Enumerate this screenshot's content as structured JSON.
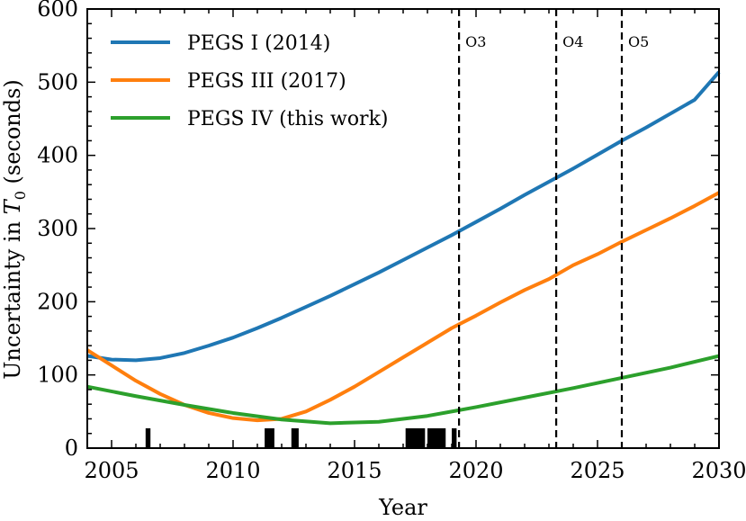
{
  "chart_data": {
    "type": "line",
    "title": "",
    "xlabel": "Year",
    "ylabel_parts": {
      "prefix": "Uncertainty in ",
      "symbol": "T",
      "subscript": "0",
      "suffix": " (seconds)"
    },
    "xlim": [
      2004,
      2030
    ],
    "ylim": [
      0,
      600
    ],
    "xticks": [
      2005,
      2010,
      2015,
      2020,
      2025,
      2030
    ],
    "yticks": [
      0,
      100,
      200,
      300,
      400,
      500,
      600
    ],
    "legend_position": "top-left",
    "series": [
      {
        "name": "PEGS I (2014)",
        "color": "#1f77b4",
        "x": [
          2004,
          2005,
          2006,
          2007,
          2008,
          2009,
          2010,
          2011,
          2012,
          2013,
          2014,
          2015,
          2016,
          2017,
          2018,
          2019,
          2020,
          2021,
          2022,
          2023,
          2024,
          2025,
          2026,
          2027,
          2028,
          2029,
          2030
        ],
        "y": [
          126,
          121,
          120,
          123,
          130,
          140,
          151,
          164,
          178,
          193,
          208,
          224,
          240,
          257,
          274,
          291,
          309,
          327,
          346,
          364,
          382,
          401,
          420,
          438,
          457,
          476,
          514
        ]
      },
      {
        "name": "PEGS III (2017)",
        "color": "#ff7f0e",
        "x": [
          2004,
          2005,
          2006,
          2007,
          2008,
          2009,
          2010,
          2011,
          2012,
          2013,
          2014,
          2015,
          2016,
          2017,
          2018,
          2019,
          2020,
          2021,
          2022,
          2023,
          2024,
          2025,
          2026,
          2027,
          2028,
          2029,
          2030
        ],
        "y": [
          134,
          113,
          92,
          74,
          59,
          48,
          41,
          38,
          40,
          50,
          66,
          84,
          104,
          124,
          144,
          164,
          181,
          199,
          216,
          231,
          250,
          265,
          282,
          298,
          314,
          331,
          349
        ]
      },
      {
        "name": "PEGS IV (this work)",
        "color": "#2ca02c",
        "x": [
          2004,
          2006,
          2008,
          2010,
          2012,
          2014,
          2016,
          2018,
          2020,
          2022,
          2024,
          2026,
          2028,
          2030
        ],
        "y": [
          84,
          71,
          59,
          48,
          39,
          34,
          36,
          44,
          56,
          69,
          82,
          96,
          110,
          126
        ]
      }
    ],
    "observing_runs": [
      {
        "label": "O3",
        "x": 2019.3
      },
      {
        "label": "O4",
        "x": 2023.3
      },
      {
        "label": "O5",
        "x": 2026.0
      }
    ],
    "events": [
      {
        "x_start": 2006.4,
        "x_end": 2006.6,
        "height": 22
      },
      {
        "x_start": 2011.3,
        "x_end": 2011.7,
        "height": 22
      },
      {
        "x_start": 2012.4,
        "x_end": 2012.7,
        "height": 22
      },
      {
        "x_start": 2017.1,
        "x_end": 2017.9,
        "height": 22
      },
      {
        "x_start": 2018.0,
        "x_end": 2018.75,
        "height": 22
      },
      {
        "x_start": 2019.0,
        "x_end": 2019.2,
        "height": 22
      }
    ]
  }
}
